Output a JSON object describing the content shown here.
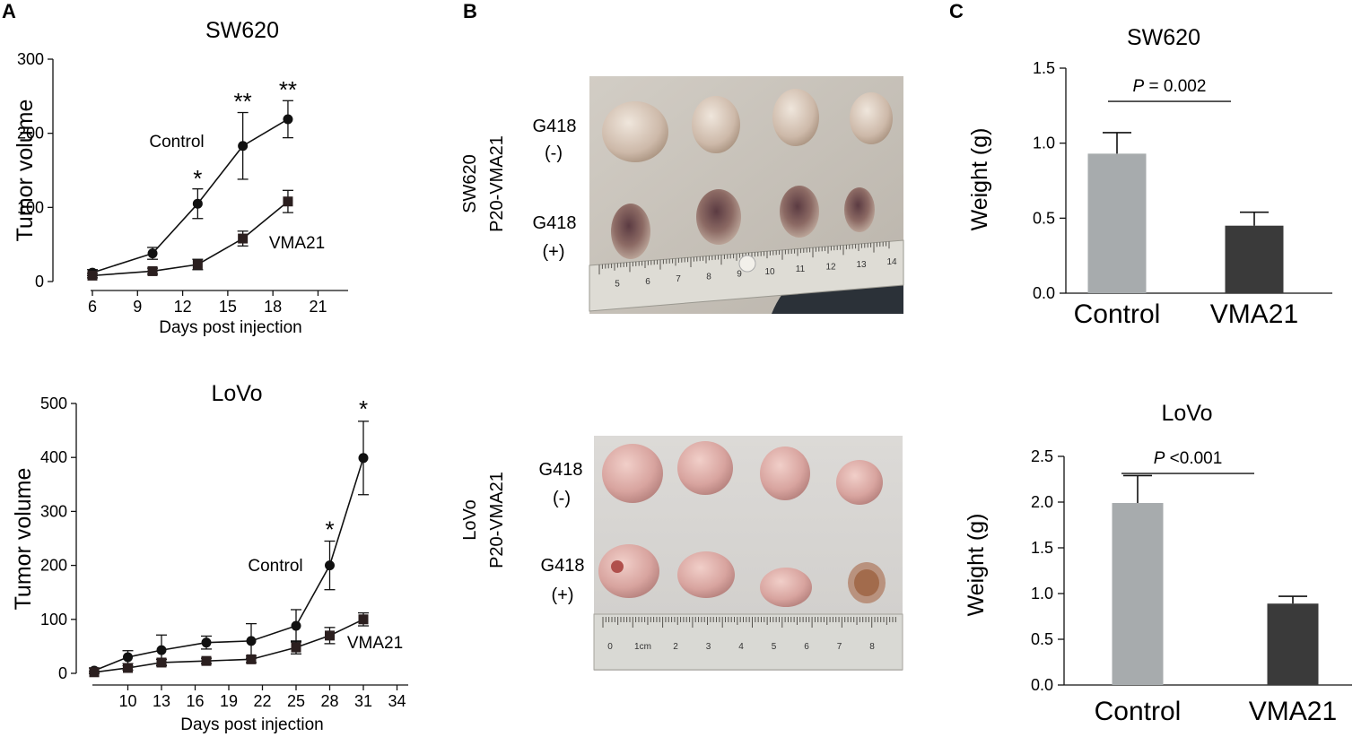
{
  "panels": {
    "a": "A",
    "b": "B",
    "c": "C"
  },
  "colors": {
    "line": "#111111",
    "control_bar": "#a7abad",
    "vma21_bar": "#3a3a3a",
    "photo_bg_top": "#cfc9c0",
    "photo_bg_bottom": "#d8d6d3",
    "ruler": "#d9d9d4"
  },
  "photos": {
    "top": {
      "side_label_1": "SW620",
      "side_label_2": "P20-VMA21",
      "row1_label_1": "G418",
      "row1_label_2": "(-)",
      "row2_label_1": "G418",
      "row2_label_2": "(+)",
      "ruler_numbers": [
        "5",
        "6",
        "7",
        "8",
        "9",
        "10",
        "11",
        "12",
        "13",
        "14"
      ]
    },
    "bottom": {
      "side_label_1": "LoVo",
      "side_label_2": "P20-VMA21",
      "row1_label_1": "G418",
      "row1_label_2": "(-)",
      "row2_label_1": "G418",
      "row2_label_2": "(+)",
      "ruler_numbers": [
        "0",
        "1cm",
        "2",
        "3",
        "4",
        "5",
        "6",
        "7",
        "8"
      ]
    }
  },
  "chart_data": [
    {
      "id": "a1",
      "type": "line",
      "title": "SW620",
      "xlabel": "Days post  injection",
      "ylabel": "Tumor volume",
      "xlim": [
        6,
        23
      ],
      "ylim": [
        0,
        300
      ],
      "xticks": [
        6,
        9,
        12,
        15,
        18,
        21
      ],
      "yticks": [
        0,
        100,
        200,
        300
      ],
      "series": [
        {
          "name": "Control",
          "marker": "circle",
          "x": [
            6,
            10,
            13,
            16,
            19
          ],
          "y": [
            12,
            38,
            105,
            183,
            219
          ],
          "err": [
            4,
            8,
            20,
            45,
            25
          ]
        },
        {
          "name": "VMA21",
          "marker": "square",
          "x": [
            6,
            10,
            13,
            16,
            19
          ],
          "y": [
            8,
            14,
            23,
            58,
            108
          ],
          "err": [
            3,
            4,
            7,
            10,
            15
          ]
        }
      ],
      "annotations": [
        {
          "x": 13,
          "y": 128,
          "text": "*"
        },
        {
          "x": 16,
          "y": 232,
          "text": "**"
        },
        {
          "x": 19,
          "y": 248,
          "text": "**"
        }
      ]
    },
    {
      "id": "a2",
      "type": "line",
      "title": "LoVo",
      "xlabel": "Days post  injection",
      "ylabel": "Tumor volume",
      "xlim": [
        7,
        35
      ],
      "ylim": [
        0,
        500
      ],
      "xticks": [
        10,
        13,
        16,
        19,
        22,
        25,
        28,
        31,
        34
      ],
      "yticks": [
        0,
        100,
        200,
        300,
        400,
        500
      ],
      "series": [
        {
          "name": "Control",
          "marker": "circle",
          "x": [
            7,
            10,
            13,
            17,
            21,
            25,
            28,
            31
          ],
          "y": [
            5,
            30,
            43,
            57,
            60,
            88,
            200,
            399
          ],
          "err": [
            5,
            12,
            28,
            12,
            32,
            30,
            45,
            68
          ]
        },
        {
          "name": "VMA21",
          "marker": "square",
          "x": [
            7,
            10,
            13,
            17,
            21,
            25,
            28,
            31
          ],
          "y": [
            2,
            10,
            20,
            23,
            26,
            48,
            70,
            100
          ],
          "err": [
            2,
            4,
            6,
            5,
            6,
            12,
            15,
            12
          ]
        }
      ],
      "annotations": [
        {
          "x": 28,
          "y": 252,
          "text": "*"
        },
        {
          "x": 31,
          "y": 475,
          "text": "*"
        }
      ]
    },
    {
      "id": "c1",
      "type": "bar",
      "title": "SW620",
      "ylabel": "Weight (g)",
      "ylim": [
        0,
        1.5
      ],
      "yticks": [
        "0.0",
        "0.5",
        "1.0",
        "1.5"
      ],
      "categories": [
        "Control",
        "VMA21"
      ],
      "values": [
        0.93,
        0.45
      ],
      "err": [
        0.14,
        0.09
      ],
      "pvalue": {
        "italic": "P",
        "text": " = 0.002",
        "y": 1.38
      }
    },
    {
      "id": "c2",
      "type": "bar",
      "title": "LoVo",
      "ylabel": "Weight (g)",
      "ylim": [
        0,
        2.5
      ],
      "yticks": [
        "0.0",
        "0.5",
        "1.0",
        "1.5",
        "2.0",
        "2.5"
      ],
      "categories": [
        "Control",
        "VMA21"
      ],
      "values": [
        1.99,
        0.89
      ],
      "err": [
        0.3,
        0.08
      ],
      "pvalue": {
        "italic": "P",
        "text": " <0.001",
        "y": 2.48
      }
    }
  ]
}
